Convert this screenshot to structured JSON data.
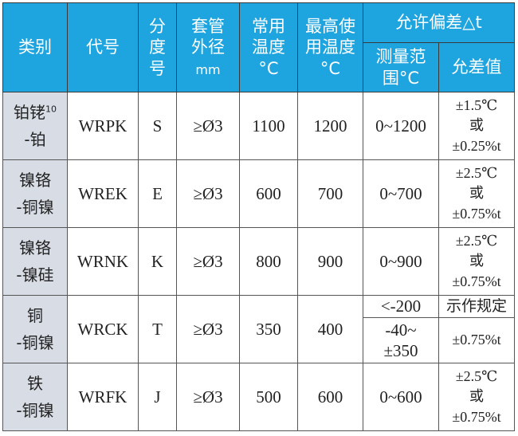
{
  "header": {
    "category": "类别",
    "code": "代号",
    "grade": [
      "分",
      "度",
      "号"
    ],
    "sheath": [
      "套管",
      "外径",
      "mm"
    ],
    "normal_temp": [
      "常用",
      "温度",
      "°C"
    ],
    "max_temp": [
      "最高使",
      "用温度",
      "°C"
    ],
    "tolerance": "允许偏差△t",
    "range": [
      "测量范",
      "围°C"
    ],
    "value": "允差值"
  },
  "rows": [
    {
      "category": [
        "铂铑",
        "10",
        "-铂"
      ],
      "code": "WRPK",
      "grade": "S",
      "sheath": "≥Ø3",
      "normal": "1100",
      "max": "1200",
      "range": "0~1200",
      "tol": [
        "±1.5℃",
        "或",
        "±0.25%t"
      ]
    },
    {
      "category": [
        "镍铬",
        "-铜镍"
      ],
      "code": "WREK",
      "grade": "E",
      "sheath": "≥Ø3",
      "normal": "600",
      "max": "700",
      "range": "0~700",
      "tol": [
        "±2.5℃",
        "或",
        "±0.75%t"
      ]
    },
    {
      "category": [
        "镍铬",
        "-镍硅"
      ],
      "code": "WRNK",
      "grade": "K",
      "sheath": "≥Ø3",
      "normal": "800",
      "max": "900",
      "range": "0~900",
      "tol": [
        "±2.5℃",
        "或",
        "±0.75%t"
      ]
    },
    {
      "category": [
        "铜",
        "-铜镍"
      ],
      "code": "WRCK",
      "grade": "T",
      "sheath": "≥Ø3",
      "normal": "350",
      "max": "400",
      "range": "<-200",
      "tol": [
        "示作规定"
      ],
      "range2": [
        "-40~",
        "±350"
      ],
      "tol2": "±0.75%t"
    },
    {
      "category": [
        "铁",
        "-铜镍"
      ],
      "code": "WRFK",
      "grade": "J",
      "sheath": "≥Ø3",
      "normal": "500",
      "max": "600",
      "range": "0~600",
      "tol": [
        "±2.5℃",
        "或",
        "±0.75%t"
      ]
    }
  ]
}
